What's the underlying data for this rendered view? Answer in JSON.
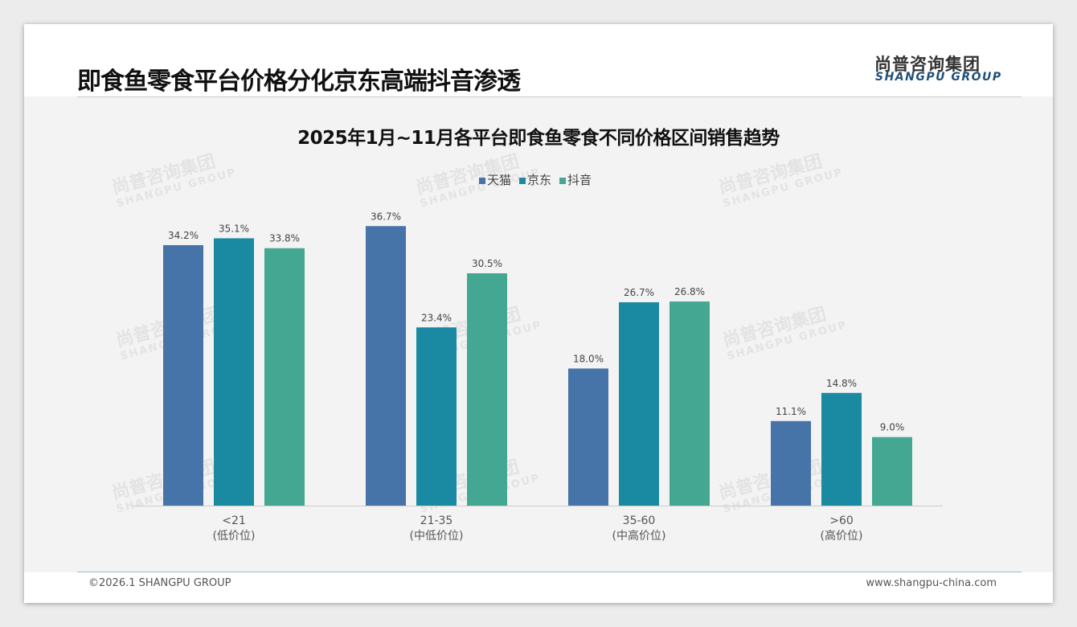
{
  "header": {
    "title": "即食鱼零食平台价格分化京东高端抖音渗透",
    "logo_cn": "尚普咨询集团",
    "logo_en": "SHANGPU GROUP"
  },
  "footer": {
    "copyright": "©2026.1 SHANGPU GROUP",
    "website": "www.shangpu-china.com"
  },
  "watermark": {
    "cn": "尚普咨询集团",
    "en": "SHANGPU GROUP"
  },
  "chart_data": {
    "type": "bar",
    "title": "2025年1月~11月各平台即食鱼零食不同价格区间销售趋势",
    "categories": [
      "<21",
      "21-35",
      "35-60",
      ">60"
    ],
    "category_sublabels": [
      "(低价位)",
      "(中低价位)",
      "(中高价位)",
      "(高价位)"
    ],
    "series": [
      {
        "name": "天猫",
        "color": "#4674a9",
        "values": [
          34.2,
          36.7,
          18.0,
          11.1
        ]
      },
      {
        "name": "京东",
        "color": "#1a89a2",
        "values": [
          35.1,
          23.4,
          26.7,
          14.8
        ]
      },
      {
        "name": "抖音",
        "color": "#44a791",
        "values": [
          33.8,
          30.5,
          26.8,
          9.0
        ]
      }
    ],
    "value_format": "percent",
    "ylim": [
      0,
      40
    ],
    "grid": false,
    "legend": "top-center"
  }
}
